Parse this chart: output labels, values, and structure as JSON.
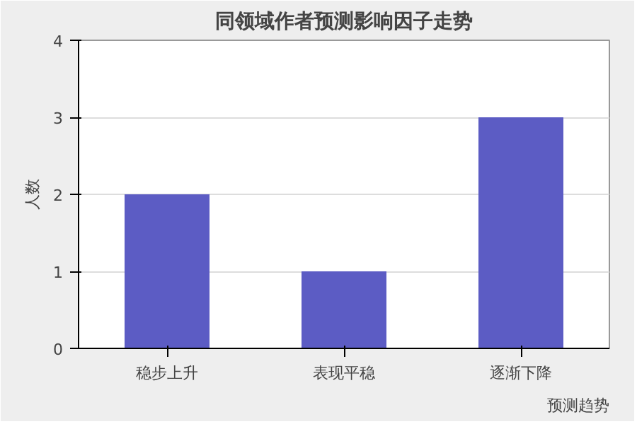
{
  "chart_data": {
    "type": "bar",
    "title": "同领域作者预测影响因子走势",
    "xlabel": "预测趋势",
    "ylabel": "人数",
    "categories": [
      "稳步上升",
      "表现平稳",
      "逐渐下降"
    ],
    "values": [
      2,
      1,
      3
    ],
    "color": "#5c5cc4",
    "ylim": [
      0,
      4
    ],
    "yticks": [
      0,
      1,
      2,
      3,
      4
    ],
    "grid": "y"
  }
}
